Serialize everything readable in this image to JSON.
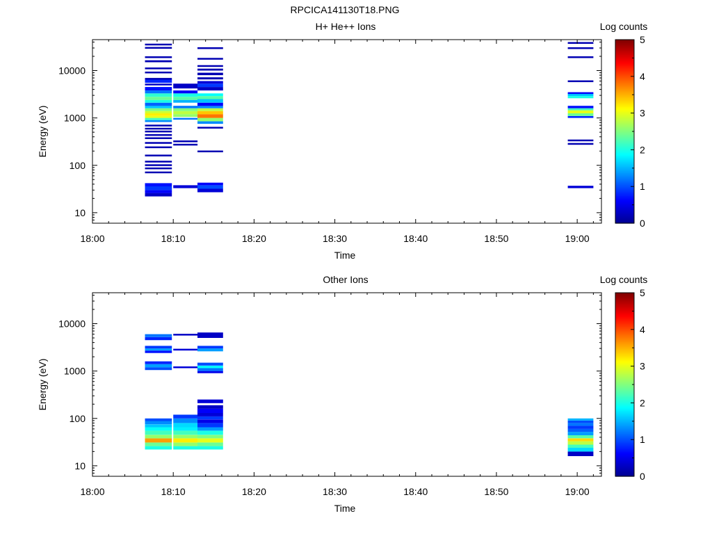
{
  "figure_title": "RPCICA141130T18.PNG",
  "colors": {
    "background": "#ffffff",
    "axis": "#000000",
    "colormap": [
      "#00008f",
      "#0000ff",
      "#0080ff",
      "#00ffff",
      "#80ff80",
      "#ffff00",
      "#ff8000",
      "#ff0000",
      "#800000"
    ]
  },
  "chart_data": [
    {
      "type": "heatmap",
      "title": "H+ He++ Ions",
      "xlabel": "Time",
      "ylabel": "Energy (eV)",
      "yscale": "log",
      "xlim": [
        "18:00",
        "19:03"
      ],
      "ylim": [
        6,
        45000
      ],
      "x_ticks": [
        "18:00",
        "18:10",
        "18:20",
        "18:30",
        "18:40",
        "18:50",
        "19:00"
      ],
      "y_ticks": [
        "10",
        "100",
        "1000",
        "10000"
      ],
      "colorbar": {
        "label": "Log counts",
        "range": [
          0,
          5
        ],
        "ticks": [
          "0",
          "1",
          "2",
          "3",
          "4",
          "5"
        ]
      },
      "time_bins": [
        {
          "start": "18:06:30",
          "end": "18:09:50",
          "cells": [
            [
              22,
              26,
              0.3
            ],
            [
              26,
              30,
              0.6
            ],
            [
              30,
              36,
              0.9
            ],
            [
              36,
              42,
              0.7
            ],
            [
              70,
              74,
              0.2
            ],
            [
              85,
              90,
              0.2
            ],
            [
              100,
              105,
              0.2
            ],
            [
              120,
              125,
              0.2
            ],
            [
              160,
              168,
              0.2
            ],
            [
              240,
              250,
              0.2
            ],
            [
              300,
              310,
              0.2
            ],
            [
              380,
              390,
              0.2
            ],
            [
              440,
              455,
              0.2
            ],
            [
              520,
              540,
              0.2
            ],
            [
              600,
              620,
              0.2
            ],
            [
              700,
              720,
              0.2
            ],
            [
              820,
              900,
              1.3
            ],
            [
              900,
              1000,
              2.2
            ],
            [
              1000,
              1100,
              3.0
            ],
            [
              1100,
              1250,
              3.2
            ],
            [
              1250,
              1400,
              2.9
            ],
            [
              1400,
              1600,
              2.5
            ],
            [
              1600,
              1800,
              1.6
            ],
            [
              1800,
              2100,
              1.1
            ],
            [
              2100,
              2400,
              2.0
            ],
            [
              2400,
              2800,
              2.4
            ],
            [
              2800,
              3300,
              2.1
            ],
            [
              3300,
              3800,
              1.2
            ],
            [
              3800,
              4500,
              0.7
            ],
            [
              5000,
              5300,
              0.3
            ],
            [
              5500,
              6500,
              0.8
            ],
            [
              6500,
              7000,
              0.2
            ],
            [
              9000,
              9500,
              0.2
            ],
            [
              11000,
              11600,
              0.2
            ],
            [
              15000,
              16500,
              0.2
            ],
            [
              19000,
              20000,
              0.2
            ],
            [
              30000,
              31500,
              0.2
            ],
            [
              35000,
              37000,
              0.2
            ]
          ]
        },
        {
          "start": "18:10:00",
          "end": "18:13:00",
          "cells": [
            [
              33,
              38,
              0.4
            ],
            [
              270,
              285,
              0.2
            ],
            [
              320,
              335,
              0.2
            ],
            [
              950,
              1000,
              1.2
            ],
            [
              1050,
              1200,
              2.6
            ],
            [
              1200,
              1400,
              2.8
            ],
            [
              1400,
              1600,
              2.5
            ],
            [
              1600,
              1800,
              1.2
            ],
            [
              2100,
              2400,
              1.5
            ],
            [
              2400,
              2800,
              2.3
            ],
            [
              2800,
              3300,
              2.0
            ],
            [
              3300,
              3800,
              0.6
            ],
            [
              4200,
              5300,
              0.3
            ]
          ]
        },
        {
          "start": "18:13:00",
          "end": "18:16:10",
          "cells": [
            [
              27,
              32,
              0.4
            ],
            [
              32,
              38,
              1.0
            ],
            [
              38,
              43,
              0.6
            ],
            [
              190,
              205,
              0.2
            ],
            [
              600,
              650,
              0.2
            ],
            [
              750,
              850,
              1.3
            ],
            [
              850,
              1000,
              2.6
            ],
            [
              1000,
              1200,
              3.8
            ],
            [
              1200,
              1400,
              3.4
            ],
            [
              1400,
              1600,
              2.8
            ],
            [
              1600,
              1800,
              1.3
            ],
            [
              1800,
              2100,
              0.6
            ],
            [
              2100,
              2500,
              1.6
            ],
            [
              2500,
              2900,
              2.3
            ],
            [
              2900,
              3300,
              1.9
            ],
            [
              3800,
              4500,
              0.3
            ],
            [
              4500,
              5300,
              0.9
            ],
            [
              5300,
              6000,
              0.4
            ],
            [
              6500,
              7200,
              0.2
            ],
            [
              8000,
              9000,
              0.2
            ],
            [
              10000,
              11000,
              0.2
            ],
            [
              12000,
              13000,
              0.2
            ],
            [
              17000,
              18500,
              0.2
            ],
            [
              29000,
              31000,
              0.2
            ]
          ]
        },
        {
          "start": "18:58:50",
          "end": "19:02:00",
          "cells": [
            [
              33,
              37,
              0.4
            ],
            [
              280,
              295,
              0.2
            ],
            [
              330,
              350,
              0.2
            ],
            [
              1000,
              1100,
              0.8
            ],
            [
              1100,
              1250,
              2.4
            ],
            [
              1250,
              1450,
              3.0
            ],
            [
              1450,
              1600,
              2.2
            ],
            [
              1600,
              1800,
              0.7
            ],
            [
              2600,
              2900,
              2.0
            ],
            [
              2900,
              3300,
              1.6
            ],
            [
              3300,
              3500,
              0.6
            ],
            [
              5800,
              6200,
              0.2
            ],
            [
              19000,
              20000,
              0.2
            ],
            [
              29000,
              31000,
              0.2
            ],
            [
              37000,
              40000,
              0.2
            ]
          ]
        }
      ]
    },
    {
      "type": "heatmap",
      "title": "Other Ions",
      "xlabel": "Time",
      "ylabel": "Energy (eV)",
      "yscale": "log",
      "xlim": [
        "18:00",
        "19:03"
      ],
      "ylim": [
        6,
        45000
      ],
      "x_ticks": [
        "18:00",
        "18:10",
        "18:20",
        "18:30",
        "18:40",
        "18:50",
        "19:00"
      ],
      "y_ticks": [
        "10",
        "100",
        "1000",
        "10000"
      ],
      "colorbar": {
        "label": "Log counts",
        "range": [
          0,
          5
        ],
        "ticks": [
          "0",
          "1",
          "2",
          "3",
          "4",
          "5"
        ]
      },
      "time_bins": [
        {
          "start": "18:06:30",
          "end": "18:09:50",
          "cells": [
            [
              22,
              26,
              2.0
            ],
            [
              26,
              31,
              2.4
            ],
            [
              31,
              38,
              3.6
            ],
            [
              38,
              45,
              2.6
            ],
            [
              45,
              55,
              2.2
            ],
            [
              55,
              65,
              1.9
            ],
            [
              65,
              75,
              1.6
            ],
            [
              75,
              88,
              1.3
            ],
            [
              88,
              100,
              1.0
            ],
            [
              1050,
              1200,
              1.0
            ],
            [
              1200,
              1400,
              1.4
            ],
            [
              1400,
              1600,
              0.8
            ],
            [
              2400,
              2700,
              0.7
            ],
            [
              2700,
              3000,
              1.4
            ],
            [
              3000,
              3400,
              0.9
            ],
            [
              4500,
              5200,
              0.8
            ],
            [
              5200,
              6000,
              1.2
            ]
          ]
        },
        {
          "start": "18:10:00",
          "end": "18:13:00",
          "cells": [
            [
              22,
              26,
              2.0
            ],
            [
              26,
              31,
              2.6
            ],
            [
              31,
              38,
              3.2
            ],
            [
              38,
              45,
              2.6
            ],
            [
              45,
              55,
              2.2
            ],
            [
              55,
              65,
              1.8
            ],
            [
              65,
              80,
              1.7
            ],
            [
              80,
              100,
              1.3
            ],
            [
              100,
              120,
              0.9
            ],
            [
              1150,
              1250,
              0.4
            ],
            [
              2750,
              2950,
              0.4
            ],
            [
              5800,
              6100,
              0.3
            ]
          ]
        },
        {
          "start": "18:13:00",
          "end": "18:16:10",
          "cells": [
            [
              22,
              26,
              2.0
            ],
            [
              26,
              31,
              2.4
            ],
            [
              31,
              38,
              3.0
            ],
            [
              38,
              45,
              2.5
            ],
            [
              45,
              55,
              2.0
            ],
            [
              55,
              65,
              1.4
            ],
            [
              65,
              80,
              0.9
            ],
            [
              80,
              95,
              0.5
            ],
            [
              95,
              110,
              0.9
            ],
            [
              110,
              130,
              0.4
            ],
            [
              130,
              160,
              0.6
            ],
            [
              160,
              190,
              0.3
            ],
            [
              210,
              250,
              0.4
            ],
            [
              900,
              1000,
              0.5
            ],
            [
              1000,
              1150,
              1.2
            ],
            [
              1150,
              1300,
              1.9
            ],
            [
              1300,
              1500,
              1.0
            ],
            [
              2600,
              3000,
              1.4
            ],
            [
              3000,
              3400,
              0.9
            ],
            [
              5000,
              6500,
              0.3
            ]
          ]
        },
        {
          "start": "18:58:50",
          "end": "19:02:00",
          "cells": [
            [
              16,
              20,
              0.3
            ],
            [
              20,
              24,
              1.7
            ],
            [
              24,
              28,
              2.2
            ],
            [
              28,
              33,
              2.8
            ],
            [
              33,
              38,
              3.3
            ],
            [
              38,
              44,
              2.3
            ],
            [
              44,
              52,
              1.4
            ],
            [
              52,
              60,
              1.1
            ],
            [
              60,
              70,
              0.9
            ],
            [
              70,
              80,
              1.2
            ],
            [
              80,
              90,
              1.0
            ],
            [
              90,
              100,
              1.5
            ]
          ]
        }
      ]
    }
  ]
}
